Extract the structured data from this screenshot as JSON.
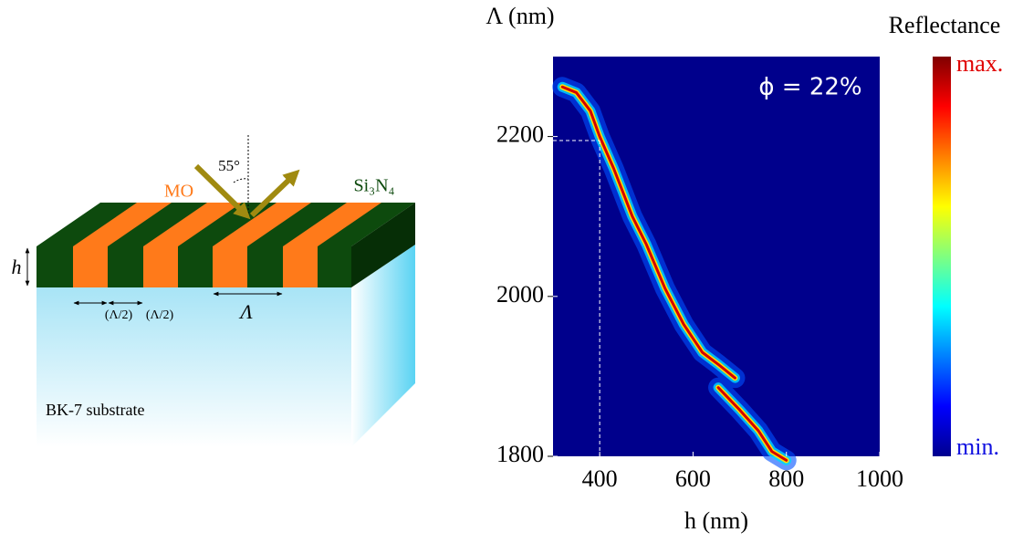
{
  "diagram": {
    "angle": "55°",
    "mo_label": "MO",
    "cap_label": "Si₃N₄",
    "height_label": "h",
    "half_period_labels": [
      "(Λ/2)",
      "(Λ/2)"
    ],
    "period_label": "Λ",
    "substrate_label": "BK-7 substrate"
  },
  "chart_data": {
    "type": "heatmap",
    "y_label": "Λ (nm)",
    "x_label": "h (nm)",
    "annotation": "ϕ = 22%",
    "colorbar": {
      "title": "Reflectance",
      "max_label": "max.",
      "min_label": "min."
    },
    "xlim": [
      300,
      1000
    ],
    "ylim": [
      1800,
      2300
    ],
    "xticks": [
      400,
      600,
      800,
      1000
    ],
    "yticks": [
      1800,
      2000,
      2200
    ],
    "marker": {
      "x": 400,
      "y": 2195
    },
    "series": [
      {
        "name": "Resonance",
        "color": "#d40000",
        "x": [
          320,
          350,
          380,
          400,
          430,
          470,
          500,
          540,
          580,
          620,
          654,
          690,
          700,
          654,
          700,
          740,
          769,
          800
        ],
        "values": [
          2262,
          2255,
          2232,
          2200,
          2160,
          2100,
          2065,
          2010,
          1965,
          1930,
          1915,
          1898,
          null,
          1886,
          1858,
          1832,
          1806,
          1795
        ]
      }
    ]
  }
}
